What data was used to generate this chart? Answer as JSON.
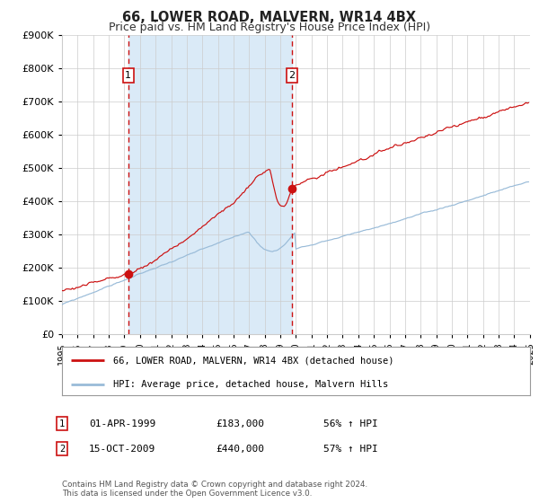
{
  "title": "66, LOWER ROAD, MALVERN, WR14 4BX",
  "subtitle": "Price paid vs. HM Land Registry's House Price Index (HPI)",
  "title_fontsize": 10.5,
  "subtitle_fontsize": 9,
  "ylim": [
    0,
    900000
  ],
  "yticks": [
    0,
    100000,
    200000,
    300000,
    400000,
    500000,
    600000,
    700000,
    800000,
    900000
  ],
  "x_start_year": 1995,
  "x_end_year": 2025,
  "background_color": "#ffffff",
  "shaded_region_color": "#daeaf7",
  "grid_color": "#cccccc",
  "line1_color": "#cc1111",
  "line2_color": "#99bbd8",
  "dashed_line_color": "#cc1111",
  "point1_year_idx": 51,
  "point1_value": 183000,
  "point2_year_idx": 177,
  "point2_value": 440000,
  "legend_line1": "66, LOWER ROAD, MALVERN, WR14 4BX (detached house)",
  "legend_line2": "HPI: Average price, detached house, Malvern Hills",
  "table_rows": [
    {
      "num": "1",
      "date": "01-APR-1999",
      "price": "£183,000",
      "hpi": "56% ↑ HPI"
    },
    {
      "num": "2",
      "date": "15-OCT-2009",
      "price": "£440,000",
      "hpi": "57% ↑ HPI"
    }
  ],
  "footer": "Contains HM Land Registry data © Crown copyright and database right 2024.\nThis data is licensed under the Open Government Licence v3.0.",
  "num_box_color": "#cc1111"
}
